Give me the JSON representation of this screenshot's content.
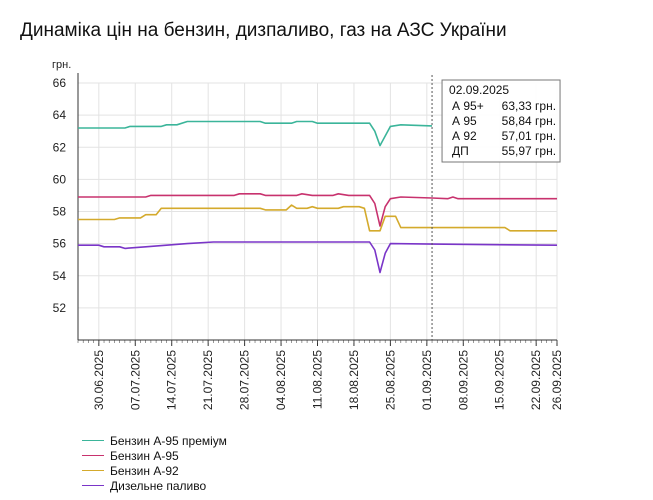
{
  "title": "Динаміка цін на бензин, дизпаливо, газ на АЗС України",
  "chart_data": {
    "type": "line",
    "ylabel": "грн.",
    "ylim": [
      50,
      66
    ],
    "yticks": [
      52,
      54,
      56,
      58,
      60,
      62,
      64,
      66
    ],
    "grid": true,
    "x_start": "2025-06-26",
    "x_end": "2025-09-26",
    "xticks": [
      "30.06.2025",
      "07.07.2025",
      "14.07.2025",
      "21.07.2025",
      "28.07.2025",
      "04.08.2025",
      "11.08.2025",
      "18.08.2025",
      "25.08.2025",
      "01.09.2025",
      "08.09.2025",
      "15.09.2025",
      "22.09.2025",
      "26.09.2025"
    ],
    "tooltip": {
      "date": "02.09.2025",
      "rows": [
        {
          "name": "А 95+",
          "value": "63,33 грн."
        },
        {
          "name": "А 95",
          "value": "58,84 грн."
        },
        {
          "name": "А 92",
          "value": "57,01 грн."
        },
        {
          "name": "ДП",
          "value": "55,97 грн."
        }
      ]
    },
    "series": [
      {
        "name": "Бензин А-95 преміум",
        "color": "#3bb59a",
        "points": [
          [
            "2025-06-26",
            63.2
          ],
          [
            "2025-07-05",
            63.2
          ],
          [
            "2025-07-06",
            63.3
          ],
          [
            "2025-07-12",
            63.3
          ],
          [
            "2025-07-13",
            63.4
          ],
          [
            "2025-07-15",
            63.4
          ],
          [
            "2025-07-17",
            63.6
          ],
          [
            "2025-07-31",
            63.6
          ],
          [
            "2025-08-01",
            63.5
          ],
          [
            "2025-08-06",
            63.5
          ],
          [
            "2025-08-07",
            63.6
          ],
          [
            "2025-08-10",
            63.6
          ],
          [
            "2025-08-11",
            63.5
          ],
          [
            "2025-08-21",
            63.5
          ],
          [
            "2025-08-22",
            63.0
          ],
          [
            "2025-08-23",
            62.1
          ],
          [
            "2025-08-24",
            62.7
          ],
          [
            "2025-08-25",
            63.3
          ],
          [
            "2025-08-27",
            63.4
          ],
          [
            "2025-09-02",
            63.33
          ]
        ]
      },
      {
        "name": "Бензин А-95",
        "color": "#c8326e",
        "points": [
          [
            "2025-06-26",
            58.9
          ],
          [
            "2025-07-09",
            58.9
          ],
          [
            "2025-07-10",
            59.0
          ],
          [
            "2025-07-26",
            59.0
          ],
          [
            "2025-07-27",
            59.1
          ],
          [
            "2025-07-31",
            59.1
          ],
          [
            "2025-08-01",
            59.0
          ],
          [
            "2025-08-07",
            59.0
          ],
          [
            "2025-08-08",
            59.1
          ],
          [
            "2025-08-10",
            59.0
          ],
          [
            "2025-08-14",
            59.0
          ],
          [
            "2025-08-15",
            59.1
          ],
          [
            "2025-08-17",
            59.0
          ],
          [
            "2025-08-21",
            59.0
          ],
          [
            "2025-08-22",
            58.5
          ],
          [
            "2025-08-23",
            57.1
          ],
          [
            "2025-08-24",
            58.3
          ],
          [
            "2025-08-25",
            58.8
          ],
          [
            "2025-08-27",
            58.9
          ],
          [
            "2025-09-02",
            58.84
          ],
          [
            "2025-09-05",
            58.8
          ],
          [
            "2025-09-06",
            58.9
          ],
          [
            "2025-09-07",
            58.8
          ],
          [
            "2025-09-26",
            58.8
          ]
        ]
      },
      {
        "name": "Бензин А-92",
        "color": "#d4aa2c",
        "points": [
          [
            "2025-06-26",
            57.5
          ],
          [
            "2025-07-03",
            57.5
          ],
          [
            "2025-07-04",
            57.6
          ],
          [
            "2025-07-08",
            57.6
          ],
          [
            "2025-07-09",
            57.8
          ],
          [
            "2025-07-11",
            57.8
          ],
          [
            "2025-07-12",
            58.2
          ],
          [
            "2025-07-31",
            58.2
          ],
          [
            "2025-08-01",
            58.1
          ],
          [
            "2025-08-05",
            58.1
          ],
          [
            "2025-08-06",
            58.4
          ],
          [
            "2025-08-07",
            58.2
          ],
          [
            "2025-08-09",
            58.2
          ],
          [
            "2025-08-10",
            58.3
          ],
          [
            "2025-08-11",
            58.2
          ],
          [
            "2025-08-15",
            58.2
          ],
          [
            "2025-08-16",
            58.3
          ],
          [
            "2025-08-19",
            58.3
          ],
          [
            "2025-08-20",
            58.2
          ],
          [
            "2025-08-21",
            56.8
          ],
          [
            "2025-08-23",
            56.8
          ],
          [
            "2025-08-24",
            57.7
          ],
          [
            "2025-08-26",
            57.7
          ],
          [
            "2025-08-27",
            57.0
          ],
          [
            "2025-09-16",
            57.0
          ],
          [
            "2025-09-17",
            56.8
          ],
          [
            "2025-09-26",
            56.8
          ]
        ]
      },
      {
        "name": "Дизельне паливо",
        "color": "#7a35c8",
        "points": [
          [
            "2025-06-26",
            55.9
          ],
          [
            "2025-06-30",
            55.9
          ],
          [
            "2025-07-01",
            55.8
          ],
          [
            "2025-07-04",
            55.8
          ],
          [
            "2025-07-05",
            55.7
          ],
          [
            "2025-07-09",
            55.8
          ],
          [
            "2025-07-13",
            55.9
          ],
          [
            "2025-07-17",
            56.0
          ],
          [
            "2025-07-22",
            56.1
          ],
          [
            "2025-08-21",
            56.1
          ],
          [
            "2025-08-22",
            55.6
          ],
          [
            "2025-08-23",
            54.2
          ],
          [
            "2025-08-24",
            55.4
          ],
          [
            "2025-08-25",
            56.0
          ],
          [
            "2025-09-02",
            55.97
          ],
          [
            "2025-09-26",
            55.9
          ]
        ]
      }
    ]
  }
}
